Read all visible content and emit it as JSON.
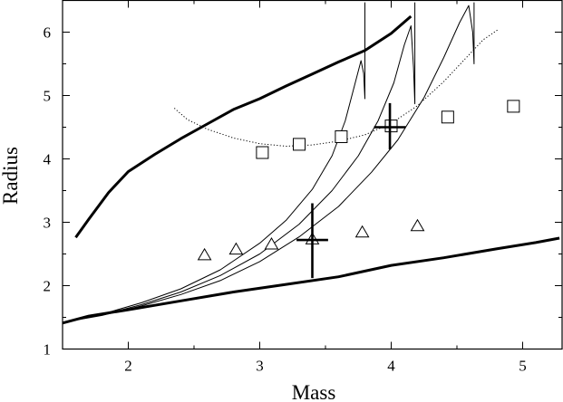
{
  "chart_data": {
    "type": "line",
    "title": "",
    "xlabel": "Mass",
    "ylabel": "Radius",
    "xlim": [
      1.5,
      5.3
    ],
    "ylim": [
      1,
      6.5
    ],
    "xticks": [
      2,
      3,
      4,
      5
    ],
    "yticks": [
      1,
      2,
      3,
      4,
      5,
      6
    ],
    "grid": false,
    "legend": "none",
    "series": [
      {
        "style": "thick",
        "x": [
          1.6,
          1.7,
          1.85,
          2.0,
          2.2,
          2.4,
          2.6,
          2.8,
          3.0,
          3.2,
          3.4,
          3.6,
          3.8,
          4.0,
          4.15
        ],
        "y": [
          2.76,
          3.05,
          3.47,
          3.8,
          4.07,
          4.32,
          4.55,
          4.78,
          4.95,
          5.15,
          5.34,
          5.53,
          5.71,
          5.98,
          6.25
        ]
      },
      {
        "style": "thick",
        "x": [
          1.5,
          1.7,
          2.0,
          2.4,
          2.8,
          3.2,
          3.6,
          4.0,
          4.4,
          4.8,
          5.1,
          5.28
        ],
        "y": [
          1.41,
          1.52,
          1.62,
          1.76,
          1.9,
          2.02,
          2.14,
          2.32,
          2.44,
          2.58,
          2.68,
          2.75
        ]
      },
      {
        "style": "thin",
        "x": [
          1.5,
          1.8,
          2.1,
          2.4,
          2.7,
          3.0,
          3.2,
          3.4,
          3.55,
          3.65,
          3.72,
          3.77,
          3.79,
          3.8,
          3.8
        ],
        "y": [
          1.42,
          1.55,
          1.73,
          1.95,
          2.25,
          2.67,
          3.03,
          3.52,
          4.05,
          4.6,
          5.15,
          5.55,
          5.35,
          4.95,
          6.47
        ]
      },
      {
        "style": "thin",
        "x": [
          1.5,
          1.8,
          2.1,
          2.4,
          2.7,
          3.0,
          3.3,
          3.55,
          3.75,
          3.9,
          4.02,
          4.1,
          4.15,
          4.17,
          4.18,
          4.18
        ],
        "y": [
          1.42,
          1.54,
          1.7,
          1.9,
          2.16,
          2.5,
          2.97,
          3.5,
          4.05,
          4.6,
          5.2,
          5.8,
          6.1,
          5.45,
          4.87,
          6.47
        ]
      },
      {
        "style": "thin",
        "x": [
          1.5,
          1.8,
          2.1,
          2.4,
          2.7,
          3.0,
          3.3,
          3.6,
          3.85,
          4.05,
          4.25,
          4.4,
          4.52,
          4.59,
          4.62,
          4.63,
          4.63
        ],
        "y": [
          1.42,
          1.53,
          1.68,
          1.86,
          2.08,
          2.38,
          2.77,
          3.25,
          3.79,
          4.3,
          4.97,
          5.6,
          6.15,
          6.42,
          6.0,
          5.5,
          6.47
        ]
      },
      {
        "style": "dotted",
        "x": [
          2.35,
          2.45,
          2.6,
          2.8,
          3.0,
          3.2,
          3.4,
          3.6,
          3.8,
          4.0,
          4.2,
          4.4,
          4.55,
          4.7,
          4.82
        ],
        "y": [
          4.8,
          4.62,
          4.47,
          4.33,
          4.24,
          4.2,
          4.22,
          4.28,
          4.38,
          4.56,
          4.84,
          5.22,
          5.55,
          5.88,
          6.05
        ]
      }
    ],
    "markers": [
      {
        "shape": "square",
        "x": [
          3.02,
          3.3,
          3.62,
          4.0,
          4.43,
          4.93
        ],
        "y": [
          4.1,
          4.23,
          4.35,
          4.52,
          4.66,
          4.83
        ]
      },
      {
        "shape": "triangle",
        "x": [
          2.58,
          2.82,
          3.09,
          3.4,
          3.78,
          4.2
        ],
        "y": [
          2.48,
          2.57,
          2.65,
          2.73,
          2.84,
          2.94
        ]
      }
    ],
    "errorbars": [
      {
        "x": 3.4,
        "y": 2.72,
        "xerr": 0.12,
        "yerr_low": 0.6,
        "yerr_high": 0.58
      },
      {
        "x": 3.99,
        "y": 4.5,
        "xerr": 0.12,
        "yerr_low": 0.35,
        "yerr_high": 0.38
      }
    ]
  }
}
